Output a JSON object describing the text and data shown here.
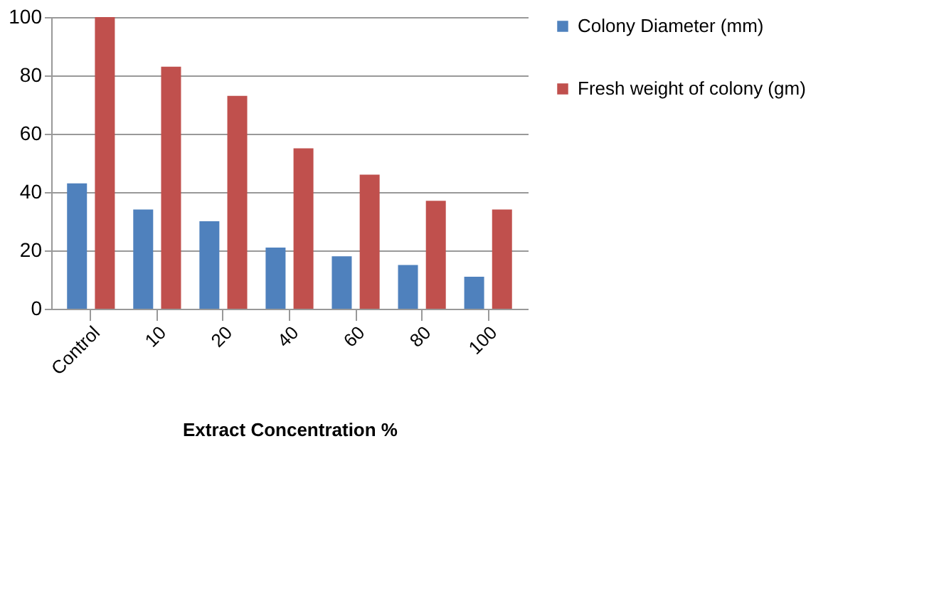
{
  "chart_data": {
    "type": "bar",
    "xlabel": "Extract Concentration %",
    "categories": [
      "Control",
      "10",
      "20",
      "40",
      "60",
      "80",
      "100"
    ],
    "series": [
      {
        "name": "Colony Diameter  (mm)",
        "color": "#4f81bd",
        "values": [
          43,
          34,
          30,
          21,
          18,
          15,
          11
        ]
      },
      {
        "name": "Fresh weight of colony (gm)",
        "color": "#c0504d",
        "values": [
          100,
          83,
          73,
          55,
          46,
          37,
          34
        ]
      }
    ],
    "ylim": [
      0,
      100
    ],
    "yticks": [
      0,
      20,
      40,
      60,
      80,
      100
    ],
    "grid": "y",
    "legend": "right"
  }
}
